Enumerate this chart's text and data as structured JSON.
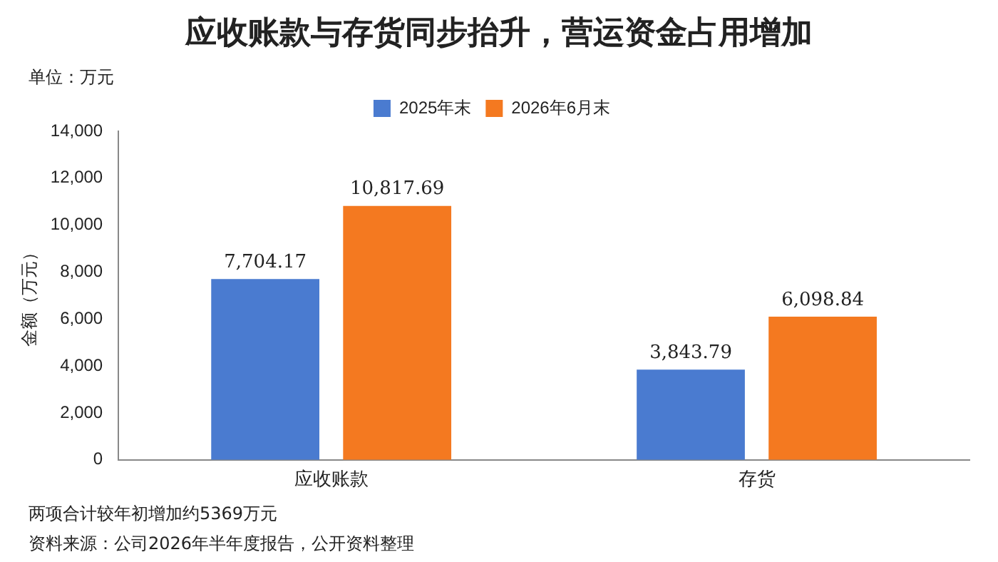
{
  "chart_data": {
    "type": "bar",
    "title": "应收账款与存货同步抬升，营运资金占用增加",
    "ylabel": "金额（万元）",
    "annotations": [
      "单位：万元",
      "两项合计较年初增加约5369万元",
      "资料来源：公司2026年半年度报告，公开资料整理"
    ],
    "categories": [
      "应收账款",
      "存货"
    ],
    "series": [
      {
        "name": "2025年末",
        "color": "#4a7bd0",
        "values": [
          7704.17,
          3843.79
        ],
        "value_labels": [
          "7,704.17",
          "3,843.79"
        ]
      },
      {
        "name": "2026年6月末",
        "color": "#f47920",
        "values": [
          10817.69,
          6098.84
        ],
        "value_labels": [
          "10,817.69",
          "6,098.84"
        ]
      }
    ],
    "ylim": [
      0,
      14000
    ],
    "yticks": [
      0,
      {
        "value": 2000,
        "label": "2,000"
      },
      {
        "value": 4000,
        "label": "4,000"
      },
      {
        "value": 6000,
        "label": "6,000"
      },
      {
        "value": 8000,
        "label": "8,000"
      },
      {
        "value": 10000,
        "label": "10,000"
      },
      {
        "value": 12000,
        "label": "12,000"
      },
      {
        "value": 14000,
        "label": "14,000"
      }
    ],
    "grid": false,
    "legend": "top"
  }
}
